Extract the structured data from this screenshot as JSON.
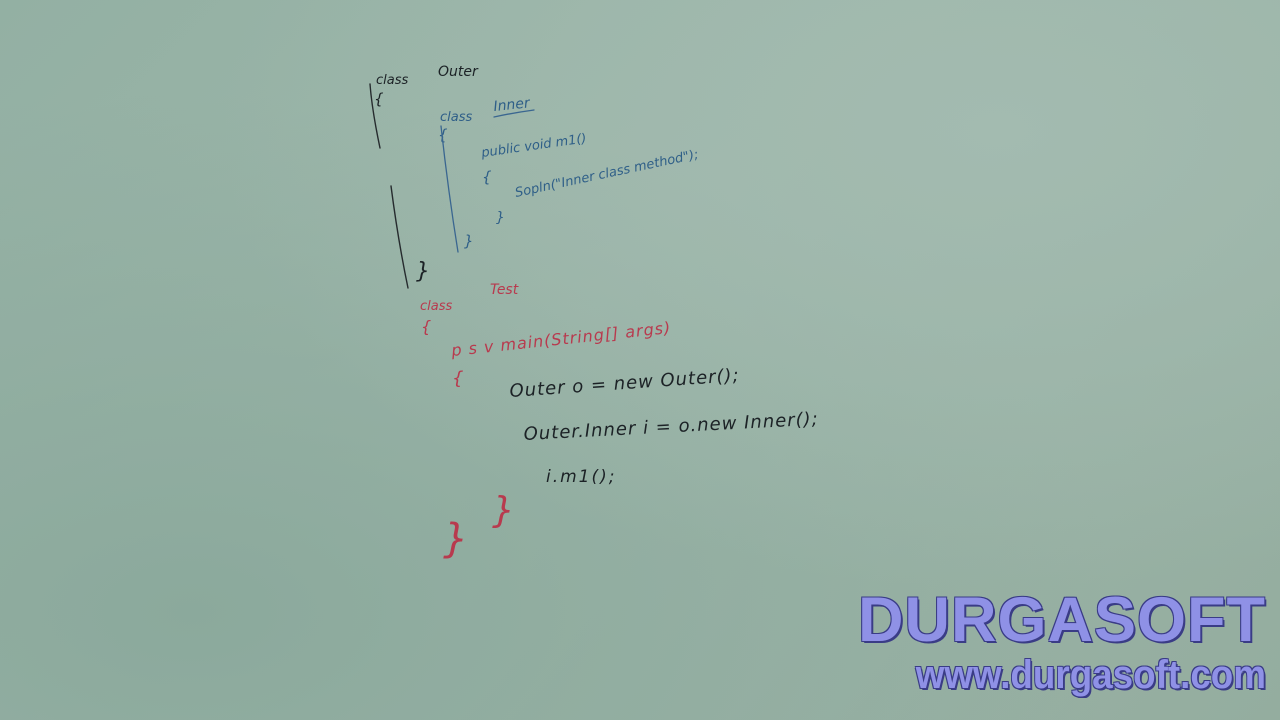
{
  "board": {
    "outer_class": {
      "keyword": "class",
      "name": "Outer",
      "open_brace": "{",
      "close_brace": "}"
    },
    "inner_class": {
      "keyword": "class",
      "name": "Inner",
      "open_brace": "{",
      "method_signature": "public void m1()",
      "method_open_brace": "{",
      "method_body": "Sopln(\"Inner class method\");",
      "method_close_brace": "}",
      "close_brace": "}"
    },
    "test_class": {
      "keyword": "class",
      "name": "Test",
      "open_brace": "{",
      "main_signature": "p s v main(String[] args)",
      "main_open_brace": "{",
      "line1": "Outer o = new Outer();",
      "line2": "Outer.Inner i = o.new Inner();",
      "line3": "i.m1();",
      "main_close_brace": "}",
      "close_brace": "}"
    }
  },
  "watermark": {
    "brand": "DURGASOFT",
    "url": "www.durgasoft.com"
  },
  "colors": {
    "board": "#98b3a7",
    "black_marker": "#1c2226",
    "blue_marker": "#2f5f88",
    "red_marker": "#b83a4e",
    "watermark_fill": "#8f91e6",
    "watermark_outline": "#3a3c86"
  }
}
